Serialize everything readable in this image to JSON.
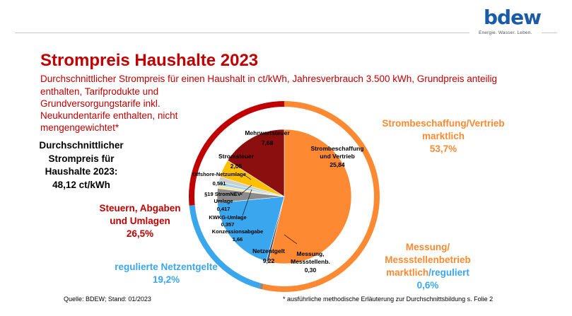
{
  "brand": {
    "logo_text": "bdew",
    "tagline": "Energie. Wasser. Leben."
  },
  "title": "Strompreis Haushalte 2023",
  "subtitle_line1": "Durchschnittlicher Strompreis für einen Haushalt in ct/kWh, Jahresverbrauch 3.500 kWh, Grundpreis anteilig",
  "subtitle_rest": "enthalten, Tarifprodukte und Grundversorgungstarife inkl. Neukundentarife enthalten, nicht mengengewichtet*",
  "average": {
    "line1": "Durchschnittlicher",
    "line2": "Strompreis für",
    "line3": "Haushalte 2023:",
    "value": "48,12 ct/kWh"
  },
  "categories": {
    "beschaffung": {
      "line1": "Strombeschaffung/Vertrieb",
      "line2": "marktlich",
      "pct": "53,7%"
    },
    "steuern": {
      "line1": "Steuern, Abgaben",
      "line2": "und Umlagen",
      "pct": "26,5%"
    },
    "netz": {
      "line1": "regulierte Netzentgelte",
      "pct": "19,2%"
    },
    "messung": {
      "line1": "Messung/",
      "line2": "Messstellenbetrieb",
      "line3a": "marktlich",
      "line3b": "/",
      "line3c": "reguliert",
      "pct": "0,6%"
    }
  },
  "source": "Quelle: BDEW; Stand: 01/2023",
  "footnote": "* ausführliche methodische Erläuterung zur Durchschnittsbildung s. Folie 2",
  "colors": {
    "red": "#c00000",
    "orange": "#fd8a32",
    "blue": "#3aa6ee",
    "dark_red": "#8b0f0f",
    "yellow": "#ffc000",
    "light_blue": "#9dd3f0",
    "light_yellow": "#f5e6a0",
    "grey": "#8c8c8c",
    "slate": "#4a5a6b"
  },
  "chart_data": {
    "type": "pie",
    "unit": "ct/kWh",
    "total": 48.12,
    "inner_pie": [
      {
        "name": "Strombeschaffung und Vertrieb",
        "value": 25.84,
        "label": "25,84",
        "color": "#fd8a32"
      },
      {
        "name": "Messung, Messstellenb.",
        "value": 0.3,
        "label": "0,30",
        "color": "#4a5a6b"
      },
      {
        "name": "Netzentgelt",
        "value": 9.22,
        "label": "9,22",
        "color": "#3aa6ee"
      },
      {
        "name": "Konzessionsabgabe",
        "value": 1.66,
        "label": "1,66",
        "color": "#8c8c8c"
      },
      {
        "name": "KWKG-Umlage",
        "value": 0.357,
        "label": "0,357",
        "color": "#f5e6a0"
      },
      {
        "name": "§19 StromNEV-Umlage",
        "value": 0.417,
        "label": "0,417",
        "color": "#9dd3f0"
      },
      {
        "name": "Offshore-Netzumlage",
        "value": 0.591,
        "label": "0,591",
        "color": "#cfcfcf"
      },
      {
        "name": "Stromsteuer",
        "value": 2.05,
        "label": "2,05",
        "color": "#ffc000"
      },
      {
        "name": "Mehrwertsteuer",
        "value": 7.68,
        "label": "7,68",
        "color": "#8b0f0f"
      }
    ],
    "outer_ring": [
      {
        "name": "Strombeschaffung/Vertrieb marktlich",
        "percent": 53.7,
        "color": "#fd8a32"
      },
      {
        "name": "Messung/Messstellenbetrieb marktlich/reguliert",
        "percent": 0.6,
        "color": "#8c8c8c"
      },
      {
        "name": "regulierte Netzentgelte",
        "percent": 19.2,
        "color": "#3aa6ee"
      },
      {
        "name": "Steuern, Abgaben und Umlagen",
        "percent": 26.5,
        "color": "#c00000"
      }
    ]
  }
}
